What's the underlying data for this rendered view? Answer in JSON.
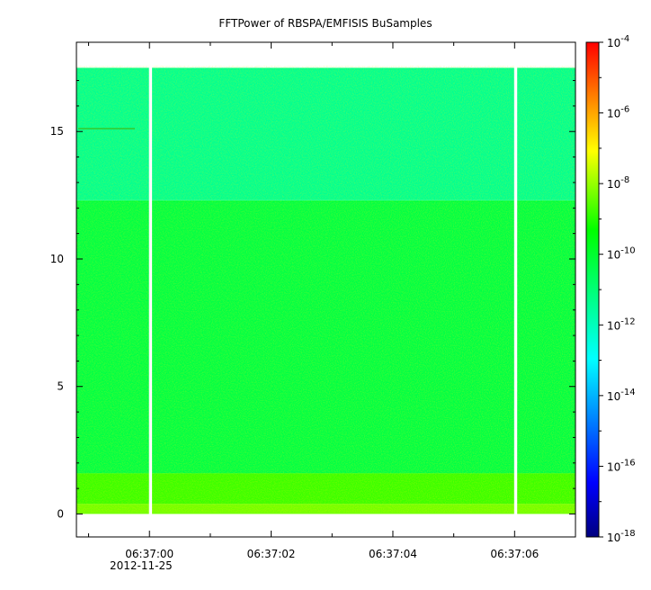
{
  "chart_data": {
    "type": "heatmap",
    "title": "FFTPower of RBSPA/EMFISIS  BuSamples",
    "xlabel": "",
    "ylabel": "",
    "x": {
      "scale": "time",
      "range": [
        "06:36:58.8",
        "06:37:07.0"
      ],
      "ticks": [
        "06:37:00",
        "06:37:02",
        "06:37:04",
        "06:37:06"
      ],
      "date_label": "2012-11-25"
    },
    "y": {
      "scale": "linear",
      "range": [
        -0.9,
        18.5
      ],
      "ticks": [
        "0",
        "5",
        "10",
        "15"
      ],
      "data_range": [
        0,
        17.5
      ]
    },
    "colorbar": {
      "scale": "log",
      "range": [
        1e-18,
        0.0001
      ],
      "colormap": "rainbow",
      "ticks": [
        {
          "base": "10",
          "exp": "-4"
        },
        {
          "base": "10",
          "exp": "-6"
        },
        {
          "base": "10",
          "exp": "-8"
        },
        {
          "base": "10",
          "exp": "-10"
        },
        {
          "base": "10",
          "exp": "-12"
        },
        {
          "base": "10",
          "exp": "-14"
        },
        {
          "base": "10",
          "exp": "-16"
        },
        {
          "base": "10",
          "exp": "-18"
        }
      ]
    },
    "bands": [
      {
        "y": [
          0,
          0.4
        ],
        "log_value": -8.3
      },
      {
        "y": [
          0.4,
          1.6
        ],
        "log_value": -8.8
      },
      {
        "y": [
          1.6,
          12.3
        ],
        "log_value": -10.3
      },
      {
        "y": [
          12.3,
          17.5
        ],
        "log_value": -11.4
      }
    ],
    "gaps": [
      {
        "start": "06:37:00.0",
        "end": "06:37:00.05"
      },
      {
        "start": "06:37:06.0",
        "end": "06:37:06.05"
      }
    ],
    "grid": false,
    "legend": "none"
  }
}
